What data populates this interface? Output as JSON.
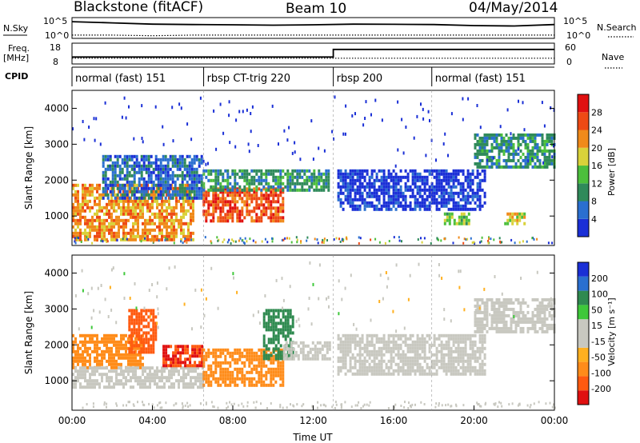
{
  "header": {
    "title": "Blackstone (fitACF)",
    "beam": "Beam 10",
    "date": "04/May/2014"
  },
  "panels": {
    "nsky_label": "N.Sky",
    "nsearch_label": "N.Search",
    "freq_label": "Freq.",
    "freq_unit": "[MHz]",
    "nave_label": "Nave",
    "cpid_label": "CPID",
    "nsky_ticks": [
      "10^5",
      "10^0"
    ],
    "freq_ticks": [
      "18",
      "8"
    ],
    "nave_ticks": [
      "60",
      "0"
    ]
  },
  "cpid_segments": [
    {
      "start": 0.0,
      "end": 6.55,
      "label": "normal (fast) 151"
    },
    {
      "start": 6.55,
      "end": 13.0,
      "label": "rbsp CT-trig 220"
    },
    {
      "start": 13.0,
      "end": 17.9,
      "label": "rbsp 200"
    },
    {
      "start": 17.9,
      "end": 24.0,
      "label": "normal (fast) 151"
    }
  ],
  "colors": {
    "power_scale": [
      "#1a2fd6",
      "#2a6fd0",
      "#2f8a5a",
      "#4cbf3c",
      "#d9d23a",
      "#f08a1a",
      "#ee4a14",
      "#e01010"
    ],
    "velocity_scale": [
      "#e01010",
      "#ff5a10",
      "#ff8c1a",
      "#ffb020",
      "#c8c8c0",
      "#c8c8c0",
      "#3ec83a",
      "#2f8a50",
      "#2a6fd0",
      "#1a2fd6"
    ]
  },
  "chart_data": [
    {
      "type": "line",
      "title": "N.Sky / N.Search",
      "x": [
        0,
        2,
        4,
        6,
        8,
        10,
        12,
        14,
        16,
        18,
        20,
        22,
        24
      ],
      "series": [
        {
          "name": "N.Sky",
          "values": [
            20000,
            9000,
            4000,
            3000,
            2500,
            2000,
            2500,
            4000,
            3500,
            3000,
            1500,
            1200,
            3000
          ]
        },
        {
          "name": "N.Search",
          "values": [
            3,
            3,
            2,
            3,
            3,
            3,
            3,
            3,
            3,
            3,
            3,
            3,
            3
          ]
        }
      ]
    },
    {
      "type": "line",
      "title": "Freq. / Nave",
      "x": [
        0,
        13.0,
        13.0,
        24
      ],
      "series": [
        {
          "name": "Freq.",
          "values": [
            11.5,
            11.5,
            15.8,
            15.8
          ]
        },
        {
          "name": "Nave",
          "values": [
            17,
            17,
            17,
            17
          ]
        }
      ]
    },
    {
      "type": "heatmap",
      "title": "Power [dB]",
      "xlabel": "Time UT",
      "ylabel": "Slant Range [km]",
      "xlim": [
        0,
        24
      ],
      "ylim": [
        180,
        4500
      ],
      "yticks": [
        1000,
        2000,
        3000,
        4000
      ],
      "colorbar_ticks": [
        4,
        8,
        12,
        16,
        20,
        24,
        28
      ],
      "colorbar_label": "Power [dB]",
      "features": [
        {
          "t_start": 0.0,
          "t_end": 6.0,
          "range_start": 300,
          "range_end": 1900,
          "value": 24
        },
        {
          "t_start": 1.5,
          "t_end": 6.5,
          "range_start": 1500,
          "range_end": 2700,
          "value": 8
        },
        {
          "t_start": 6.5,
          "t_end": 10.5,
          "range_start": 900,
          "range_end": 1800,
          "value": 28
        },
        {
          "t_start": 6.5,
          "t_end": 12.8,
          "range_start": 1700,
          "range_end": 2300,
          "value": 12
        },
        {
          "t_start": 13.2,
          "t_end": 20.5,
          "range_start": 1200,
          "range_end": 2300,
          "value": 4
        },
        {
          "t_start": 18.5,
          "t_end": 19.8,
          "range_start": 800,
          "range_end": 1100,
          "value": 16
        },
        {
          "t_start": 21.5,
          "t_end": 22.5,
          "range_start": 800,
          "range_end": 1100,
          "value": 20
        },
        {
          "t_start": 20.0,
          "t_end": 24.0,
          "range_start": 2400,
          "range_end": 3300,
          "value": 12
        }
      ]
    },
    {
      "type": "heatmap",
      "title": "Velocity [m s-1]",
      "xlabel": "Time UT",
      "ylabel": "Slant Range [km]",
      "xlim": [
        0,
        24
      ],
      "ylim": [
        180,
        4500
      ],
      "yticks": [
        1000,
        2000,
        3000,
        4000
      ],
      "xticks": [
        "00:00",
        "04:00",
        "08:00",
        "12:00",
        "16:00",
        "20:00",
        "00:00"
      ],
      "colorbar_ticks": [
        -200,
        -100,
        -50,
        -15,
        15,
        50,
        100,
        200
      ],
      "colorbar_label": "Velocity [m s-1]",
      "features": [
        {
          "t_start": 0.0,
          "t_end": 3.5,
          "range_start": 1400,
          "range_end": 2300,
          "value": -60
        },
        {
          "t_start": 0.0,
          "t_end": 6.5,
          "range_start": 800,
          "range_end": 1400,
          "value": 0
        },
        {
          "t_start": 2.8,
          "t_end": 4.2,
          "range_start": 1800,
          "range_end": 3000,
          "value": -150
        },
        {
          "t_start": 4.5,
          "t_end": 6.5,
          "range_start": 1400,
          "range_end": 2000,
          "value": -200
        },
        {
          "t_start": 6.5,
          "t_end": 10.5,
          "range_start": 900,
          "range_end": 1900,
          "value": -80
        },
        {
          "t_start": 9.5,
          "t_end": 11.0,
          "range_start": 1600,
          "range_end": 3000,
          "value": 60
        },
        {
          "t_start": 10.5,
          "t_end": 12.8,
          "range_start": 1600,
          "range_end": 2100,
          "value": 0
        },
        {
          "t_start": 13.2,
          "t_end": 20.5,
          "range_start": 1200,
          "range_end": 2300,
          "value": 0
        },
        {
          "t_start": 20.0,
          "t_end": 24.0,
          "range_start": 2400,
          "range_end": 3300,
          "value": 0
        }
      ]
    }
  ],
  "axes": {
    "xlabel": "Time UT",
    "ylabel": "Slant Range [km]",
    "power_label": "Power [dB]",
    "velocity_label": "Velocity [m s⁻¹]"
  }
}
